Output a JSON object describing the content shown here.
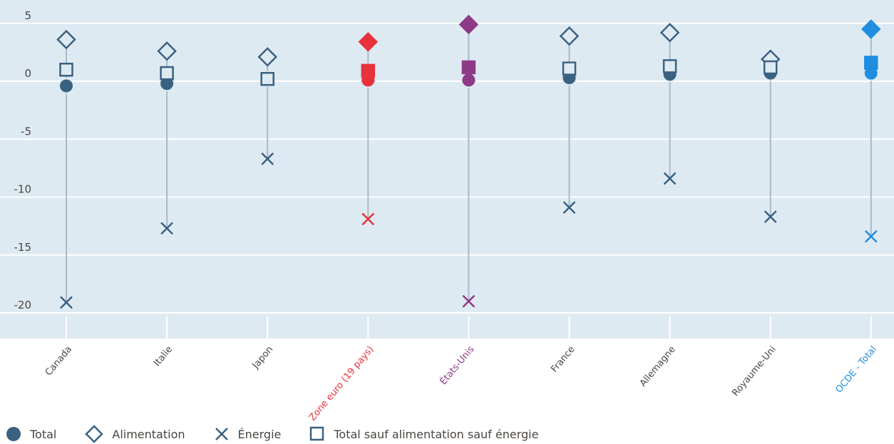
{
  "chart_data": {
    "type": "scatter",
    "title": "",
    "xlabel": "",
    "ylabel": "",
    "ylim": [
      -22,
      7
    ],
    "yticks": [
      5,
      0,
      -5,
      -10,
      -15,
      -20
    ],
    "ytick_labels": [
      "5",
      "0",
      "-5",
      "-10",
      "-15",
      "-20"
    ],
    "grid": true,
    "legend_position": "bottom-left",
    "categories": [
      "Canada",
      "Italie",
      "Japon",
      "Zone euro (19 pays)",
      "États-Unis",
      "France",
      "Allemagne",
      "Royaume-Uni",
      "OCDE - Total"
    ],
    "category_colors": [
      "#3b6182",
      "#3b6182",
      "#3b6182",
      "#e8313a",
      "#8d3a87",
      "#3b6182",
      "#3b6182",
      "#3b6182",
      "#1f8ee0"
    ],
    "label_colors": [
      "#4a4541",
      "#4a4541",
      "#4a4541",
      "#e8313a",
      "#8d3a87",
      "#4a4541",
      "#4a4541",
      "#4a4541",
      "#1f8ee0"
    ],
    "series": [
      {
        "name": "Total",
        "marker": "circle",
        "values": [
          -0.4,
          -0.2,
          0.2,
          0.1,
          0.1,
          0.3,
          0.6,
          0.7,
          0.7
        ]
      },
      {
        "name": "Alimentation",
        "marker": "diamond",
        "values": [
          3.6,
          2.6,
          2.1,
          3.4,
          4.9,
          3.9,
          4.2,
          1.9,
          4.5
        ]
      },
      {
        "name": "Énergie",
        "marker": "cross",
        "values": [
          -19.1,
          -12.7,
          -6.7,
          -11.9,
          -19.0,
          -10.9,
          -8.4,
          -11.7,
          -13.4
        ]
      },
      {
        "name": "Total sauf alimentation sauf énergie",
        "marker": "square",
        "values": [
          1.0,
          0.7,
          0.2,
          0.9,
          1.2,
          1.1,
          1.3,
          1.2,
          1.6
        ]
      }
    ]
  },
  "legend": [
    "Total",
    "Alimentation",
    "Énergie",
    "Total sauf alimentation sauf énergie"
  ],
  "colors": {
    "base": "#3b6182",
    "plot_bg": "#deeaf2",
    "stem": "#a9b9c5"
  }
}
